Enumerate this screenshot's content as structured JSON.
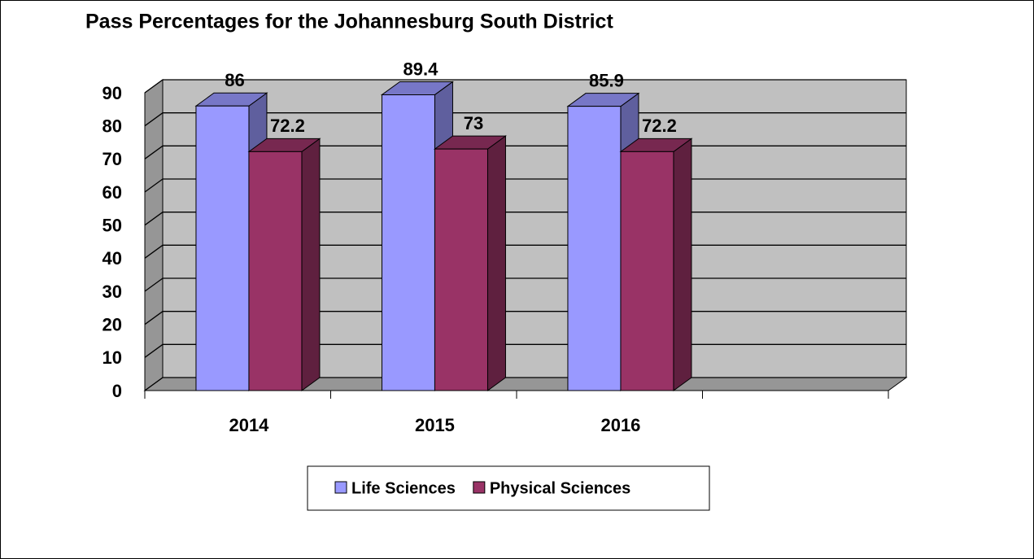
{
  "chart_data": {
    "type": "bar3d",
    "title": "Pass Percentages for the Johannesburg South District",
    "categories": [
      "2014",
      "2015",
      "2016",
      null
    ],
    "series": [
      {
        "name": "Life Sciences",
        "color": "#9999ff",
        "values": [
          86,
          89.4,
          85.9,
          null
        ]
      },
      {
        "name": "Physical Sciences",
        "color": "#993366",
        "values": [
          72.2,
          73,
          72.2,
          null
        ]
      }
    ],
    "ylim": [
      0,
      90
    ],
    "yticks": [
      0,
      10,
      20,
      30,
      40,
      50,
      60,
      70,
      80,
      90
    ],
    "grid": true,
    "legend": "bottom"
  }
}
